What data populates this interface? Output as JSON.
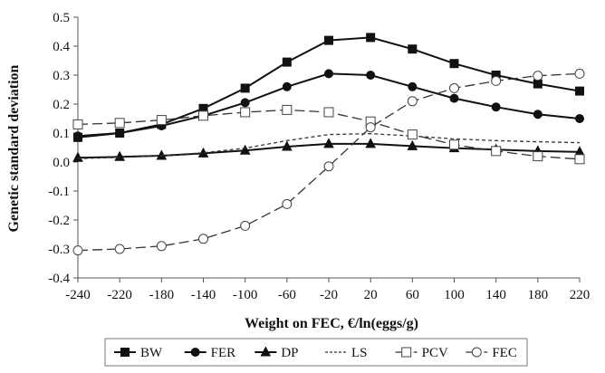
{
  "chart_data": {
    "type": "line",
    "xlabel": "Weight on FEC, €/ln(eggs/g)",
    "ylabel": "Genetic standard deviation",
    "x": [
      -240,
      -220,
      -180,
      -140,
      -100,
      -60,
      -20,
      20,
      60,
      100,
      140,
      180,
      220
    ],
    "x_tick_labels": [
      "-240",
      "-220",
      "-180",
      "-140",
      "-100",
      "-60",
      "-20",
      "20",
      "60",
      "100",
      "140",
      "180",
      "220"
    ],
    "ylim": [
      -0.4,
      0.5
    ],
    "y_ticks": [
      0.5,
      0.4,
      0.3,
      0.2,
      0.1,
      0.0,
      -0.1,
      -0.2,
      -0.3,
      -0.4
    ],
    "y_tick_labels": [
      "0.5",
      "0.4",
      "0.3",
      "0.2",
      "0.1",
      "0.0",
      "-0.1",
      "-0.2",
      "-0.3",
      "-0.4"
    ],
    "grid": false,
    "legend_position": "bottom",
    "series": [
      {
        "name": "BW",
        "marker": "square-filled",
        "line": "solid",
        "values": [
          0.085,
          0.1,
          0.13,
          0.185,
          0.255,
          0.345,
          0.42,
          0.43,
          0.39,
          0.34,
          0.3,
          0.27,
          0.245
        ]
      },
      {
        "name": "FER",
        "marker": "circle-filled",
        "line": "solid",
        "values": [
          0.09,
          0.1,
          0.125,
          0.16,
          0.205,
          0.26,
          0.305,
          0.3,
          0.26,
          0.22,
          0.19,
          0.165,
          0.15
        ]
      },
      {
        "name": "DP",
        "marker": "triangle-filled",
        "line": "solid",
        "values": [
          0.015,
          0.018,
          0.022,
          0.03,
          0.04,
          0.053,
          0.063,
          0.063,
          0.055,
          0.048,
          0.043,
          0.038,
          0.035
        ]
      },
      {
        "name": "LS",
        "marker": "none",
        "line": "short-dash",
        "values": [
          0.012,
          0.016,
          0.022,
          0.032,
          0.048,
          0.074,
          0.095,
          0.098,
          0.09,
          0.08,
          0.074,
          0.07,
          0.067
        ]
      },
      {
        "name": "PCV",
        "marker": "square-open",
        "line": "long-dash",
        "values": [
          0.13,
          0.135,
          0.145,
          0.16,
          0.172,
          0.18,
          0.172,
          0.14,
          0.095,
          0.06,
          0.038,
          0.02,
          0.01
        ]
      },
      {
        "name": "FEC",
        "marker": "circle-open",
        "line": "long-dash",
        "values": [
          -0.305,
          -0.3,
          -0.29,
          -0.265,
          -0.22,
          -0.145,
          -0.015,
          0.12,
          0.21,
          0.255,
          0.28,
          0.298,
          0.305
        ]
      }
    ]
  }
}
